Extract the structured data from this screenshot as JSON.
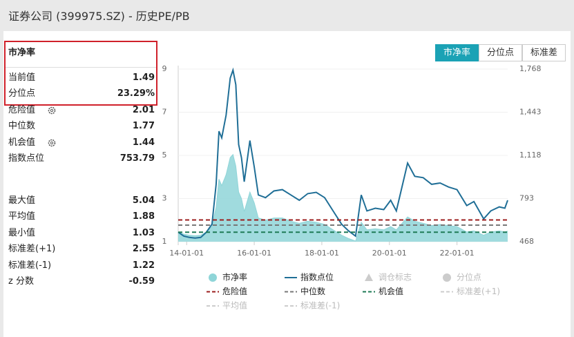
{
  "header": {
    "title": "证券公司 (399975.SZ) - 历史PE/PB"
  },
  "stats": {
    "title": "市净率",
    "groups": [
      [
        {
          "label": "当前值",
          "value": 1.49
        },
        {
          "label": "分位点",
          "value": "23.29%"
        },
        {
          "label": "危险值",
          "value": 2.01,
          "icon": true
        },
        {
          "label": "中位数",
          "value": 1.77
        },
        {
          "label": "机会值",
          "value": 1.44,
          "icon": true
        },
        {
          "label": "指数点位",
          "value": 753.79
        }
      ],
      [
        {
          "label": "最大值",
          "value": 5.04
        },
        {
          "label": "平均值",
          "value": 1.88
        },
        {
          "label": "最小值",
          "value": 1.03
        },
        {
          "label": "标准差(+1)",
          "value": 2.55
        },
        {
          "label": "标准差(-1)",
          "value": 1.22
        },
        {
          "label": "z 分数",
          "value": -0.59
        }
      ]
    ]
  },
  "tabs": {
    "items": [
      "市净率",
      "分位点",
      "标准差"
    ],
    "active": 0
  },
  "chart_data": {
    "type": "line",
    "x": [
      "13-10-01",
      "13-12-01",
      "14-02-01",
      "14-04-01",
      "14-06-01",
      "14-08-01",
      "14-10-01",
      "14-11-15",
      "14-12-15",
      "15-01-15",
      "15-03-01",
      "15-04-15",
      "15-05-15",
      "15-06-15",
      "15-07-15",
      "15-08-15",
      "15-09-15",
      "15-11-15",
      "16-01-01",
      "16-02-15",
      "16-05-01",
      "16-08-01",
      "16-11-01",
      "17-02-01",
      "17-05-01",
      "17-08-01",
      "17-11-01",
      "18-02-01",
      "18-05-01",
      "18-08-01",
      "18-10-15",
      "19-01-01",
      "19-03-01",
      "19-05-01",
      "19-08-01",
      "19-11-01",
      "20-01-15",
      "20-03-15",
      "20-07-15",
      "20-10-01",
      "21-01-01",
      "21-04-01",
      "21-07-01",
      "21-10-01",
      "22-01-01",
      "22-04-15",
      "22-07-01",
      "22-10-15",
      "23-01-01",
      "23-04-01",
      "23-06-01",
      "23-07-01"
    ],
    "series": [
      {
        "name": "市净率",
        "color": "#8fd5d8",
        "fill": true,
        "values": [
          1.45,
          1.35,
          1.3,
          1.28,
          1.3,
          1.45,
          1.7,
          2.6,
          3.9,
          3.6,
          4.1,
          4.9,
          5.04,
          4.5,
          3.3,
          3.0,
          2.4,
          3.3,
          2.8,
          2.1,
          2.0,
          2.1,
          2.1,
          1.95,
          1.85,
          1.95,
          1.9,
          1.8,
          1.55,
          1.3,
          1.15,
          1.03,
          1.9,
          1.55,
          1.6,
          1.55,
          1.7,
          1.55,
          2.15,
          1.95,
          1.85,
          1.75,
          1.8,
          1.75,
          1.7,
          1.45,
          1.5,
          1.3,
          1.45,
          1.5,
          1.45,
          1.49
        ]
      },
      {
        "name": "指数点位",
        "color": "#1f6e96",
        "axis": "y2",
        "values": [
          540,
          510,
          500,
          495,
          500,
          540,
          600,
          900,
          1300,
          1250,
          1420,
          1700,
          1760,
          1650,
          1200,
          1100,
          920,
          1230,
          1030,
          820,
          800,
          850,
          860,
          820,
          780,
          830,
          840,
          800,
          700,
          600,
          550,
          510,
          820,
          700,
          720,
          710,
          780,
          700,
          1060,
          960,
          950,
          900,
          910,
          880,
          860,
          740,
          770,
          640,
          700,
          730,
          720,
          780
        ]
      }
    ],
    "markers": [
      {
        "name": "调仓标志",
        "shape": "triangle",
        "active": false
      },
      {
        "name": "分位点",
        "shape": "circle",
        "active": false
      }
    ],
    "reference_lines": [
      {
        "name": "危险值",
        "color": "#9b1c1c",
        "active": true
      },
      {
        "name": "中位数",
        "color": "#777777",
        "active": true
      },
      {
        "name": "机会值",
        "color": "#1d7a55",
        "active": true
      },
      {
        "name": "标准差(+1)",
        "color": "#bbbbbb",
        "active": false
      },
      {
        "name": "平均值",
        "color": "#bbbbbb",
        "active": false
      },
      {
        "name": "标准差(-1)",
        "color": "#bbbbbb",
        "active": false
      }
    ],
    "xlim": [
      "13-10-01",
      "23-07-01"
    ],
    "xticks": [
      "14-01-01",
      "16-01-01",
      "18-01-01",
      "20-01-01",
      "22-01-01"
    ],
    "ylim": [
      1,
      9
    ],
    "yticks": [
      1,
      3,
      5,
      7,
      9
    ],
    "y2lim": [
      468,
      1768
    ],
    "y2ticks": [
      468,
      793,
      {
        "value": 1118,
        "label": "1,118"
      },
      {
        "value": 1443,
        "label": "1,443"
      },
      {
        "value": 1768,
        "label": "1,768"
      }
    ],
    "grid": true
  }
}
